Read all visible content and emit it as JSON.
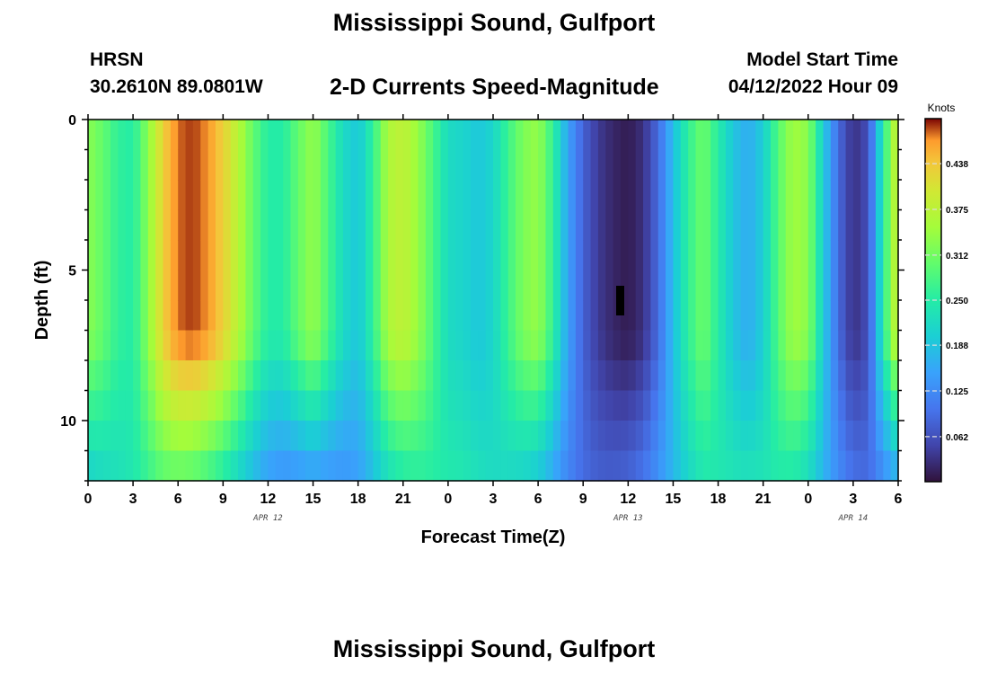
{
  "header": {
    "title": "Mississippi Sound, Gulfport",
    "station": "HRSN",
    "coords": "30.2610N  89.0801W",
    "subtitle": "2-D Currents Speed-Magnitude",
    "model_start_label": "Model Start Time",
    "model_start_value": "04/12/2022 Hour 09"
  },
  "footer": {
    "title": "Mississippi Sound, Gulfport"
  },
  "chart_data": {
    "type": "heatmap",
    "title": "2-D Currents Speed-Magnitude",
    "xlabel": "Forecast Time(Z)",
    "ylabel": "Depth (ft)",
    "x_range_hours": [
      0,
      54
    ],
    "y_range_ft": [
      0,
      12
    ],
    "x_ticks": [
      "0",
      "3",
      "6",
      "9",
      "12",
      "15",
      "18",
      "21",
      "0",
      "3",
      "6",
      "9",
      "12",
      "15",
      "18",
      "21",
      "0",
      "3",
      "6"
    ],
    "y_ticks": [
      "0",
      "5",
      "10"
    ],
    "date_labels": [
      {
        "text": "APR 12",
        "hour": 12
      },
      {
        "text": "APR 13",
        "hour": 36
      },
      {
        "text": "APR 14",
        "hour": 51
      }
    ],
    "colorbar": {
      "title": "Knots",
      "range": [
        0,
        0.5
      ],
      "ticks": [
        "0.062",
        "0.125",
        "0.188",
        "0.250",
        "0.312",
        "0.375",
        "0.438"
      ]
    },
    "surface_speed_knots": [
      {
        "hour": 0,
        "value": 0.33
      },
      {
        "hour": 1,
        "value": 0.3
      },
      {
        "hour": 2,
        "value": 0.26
      },
      {
        "hour": 3,
        "value": 0.25
      },
      {
        "hour": 4,
        "value": 0.33
      },
      {
        "hour": 5,
        "value": 0.43
      },
      {
        "hour": 6,
        "value": 0.48
      },
      {
        "hour": 7,
        "value": 0.49
      },
      {
        "hour": 8,
        "value": 0.47
      },
      {
        "hour": 9,
        "value": 0.43
      },
      {
        "hour": 10,
        "value": 0.37
      },
      {
        "hour": 11,
        "value": 0.3
      },
      {
        "hour": 12,
        "value": 0.25
      },
      {
        "hour": 13,
        "value": 0.25
      },
      {
        "hour": 14,
        "value": 0.3
      },
      {
        "hour": 15,
        "value": 0.34
      },
      {
        "hour": 16,
        "value": 0.28
      },
      {
        "hour": 17,
        "value": 0.22
      },
      {
        "hour": 18,
        "value": 0.19
      },
      {
        "hour": 19,
        "value": 0.26
      },
      {
        "hour": 20,
        "value": 0.36
      },
      {
        "hour": 21,
        "value": 0.38
      },
      {
        "hour": 22,
        "value": 0.34
      },
      {
        "hour": 23,
        "value": 0.28
      },
      {
        "hour": 24,
        "value": 0.22
      },
      {
        "hour": 25,
        "value": 0.21
      },
      {
        "hour": 26,
        "value": 0.19
      },
      {
        "hour": 27,
        "value": 0.21
      },
      {
        "hour": 28,
        "value": 0.27
      },
      {
        "hour": 29,
        "value": 0.32
      },
      {
        "hour": 30,
        "value": 0.34
      },
      {
        "hour": 31,
        "value": 0.26
      },
      {
        "hour": 32,
        "value": 0.15
      },
      {
        "hour": 33,
        "value": 0.08
      },
      {
        "hour": 34,
        "value": 0.04
      },
      {
        "hour": 35,
        "value": 0.02
      },
      {
        "hour": 36,
        "value": 0.01
      },
      {
        "hour": 37,
        "value": 0.03
      },
      {
        "hour": 38,
        "value": 0.09
      },
      {
        "hour": 39,
        "value": 0.18
      },
      {
        "hour": 40,
        "value": 0.26
      },
      {
        "hour": 41,
        "value": 0.31
      },
      {
        "hour": 42,
        "value": 0.25
      },
      {
        "hour": 43,
        "value": 0.19
      },
      {
        "hour": 44,
        "value": 0.16
      },
      {
        "hour": 45,
        "value": 0.2
      },
      {
        "hour": 46,
        "value": 0.29
      },
      {
        "hour": 47,
        "value": 0.35
      },
      {
        "hour": 48,
        "value": 0.33
      },
      {
        "hour": 49,
        "value": 0.2
      },
      {
        "hour": 50,
        "value": 0.09
      },
      {
        "hour": 51,
        "value": 0.03
      },
      {
        "hour": 52,
        "value": 0.06
      },
      {
        "hour": 53,
        "value": 0.25
      },
      {
        "hour": 54,
        "value": 0.4
      }
    ]
  }
}
